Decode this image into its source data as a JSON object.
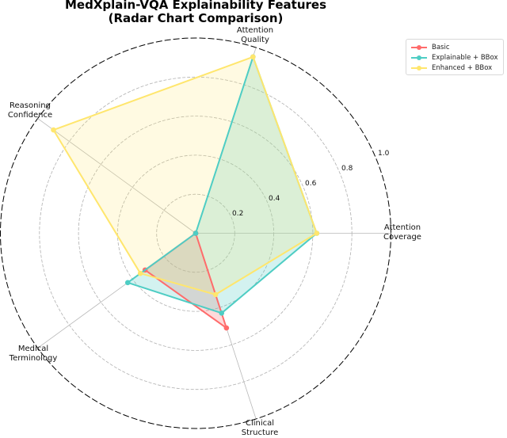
{
  "title": {
    "line1": "MedXplain-VQA Explainability Features",
    "line2": "(Radar Chart Comparison)"
  },
  "legend": {
    "items": [
      {
        "label": "Basic",
        "color": "#FF6B6B"
      },
      {
        "label": "Explainable + BBox",
        "color": "#4ECDC4"
      },
      {
        "label": "Enhanced + BBox",
        "color": "#FFE66D"
      }
    ]
  },
  "axis_labels": {
    "attention_coverage": [
      "Attention",
      "Coverage"
    ],
    "attention_quality": [
      "Attention",
      "Quality"
    ],
    "reasoning_confidence": [
      "Reasoning",
      "Confidence"
    ],
    "medical_terminology": [
      "Medical",
      "Terminology"
    ],
    "clinical_structure": [
      "Clinical",
      "Structure"
    ]
  },
  "tick_labels": [
    "0.2",
    "0.4",
    "0.6",
    "0.8",
    "1.0"
  ],
  "chart_data": {
    "type": "radar",
    "title": "MedXplain-VQA Explainability Features (Radar Chart Comparison)",
    "categories": [
      "Attention Coverage",
      "Attention Quality",
      "Reasoning Confidence",
      "Medical Terminology",
      "Clinical Structure"
    ],
    "series": [
      {
        "name": "Basic",
        "color": "#FF6B6B",
        "values": [
          0.0,
          0.0,
          0.0,
          0.32,
          0.51
        ]
      },
      {
        "name": "Explainable + BBox",
        "color": "#4ECDC4",
        "values": [
          0.62,
          0.95,
          0.0,
          0.43,
          0.43
        ]
      },
      {
        "name": "Enhanced + BBox",
        "color": "#FFE66D",
        "values": [
          0.62,
          0.95,
          0.9,
          0.35,
          0.33
        ]
      }
    ],
    "rlim": [
      0,
      1.0
    ],
    "rticks": [
      0.2,
      0.4,
      0.6,
      0.8,
      1.0
    ],
    "grid": true,
    "legend_position": "upper right"
  }
}
